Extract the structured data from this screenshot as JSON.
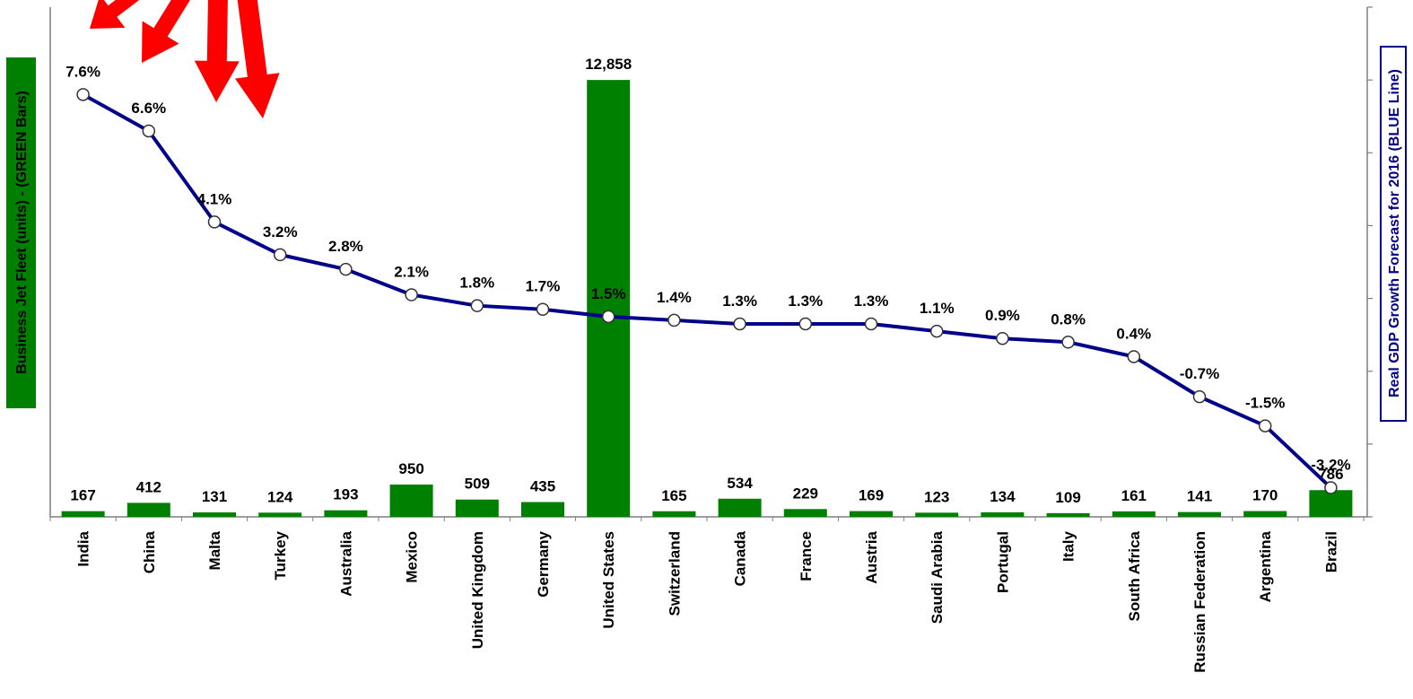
{
  "chart_data": {
    "type": "bar",
    "categories": [
      "India",
      "China",
      "Malta",
      "Turkey",
      "Australia",
      "Mexico",
      "United Kingdom",
      "Germany",
      "United States",
      "Switzerland",
      "Canada",
      "France",
      "Austria",
      "Saudi Arabia",
      "Portugal",
      "Italy",
      "South Africa",
      "Russian Federation",
      "Argentina",
      "Brazil"
    ],
    "series": [
      {
        "name": "Business Jet Fleet",
        "kind": "bar",
        "axis": "left",
        "color": "#008000",
        "values": [
          167,
          412,
          131,
          124,
          193,
          950,
          509,
          435,
          12858,
          165,
          534,
          229,
          169,
          123,
          134,
          109,
          161,
          141,
          170,
          786
        ],
        "labels": [
          "167",
          "412",
          "131",
          "124",
          "193",
          "950",
          "509",
          "435",
          "12,858",
          "165",
          "534",
          "229",
          "169",
          "123",
          "134",
          "109",
          "161",
          "141",
          "170",
          "786"
        ]
      },
      {
        "name": "Real GDP Growth Forecast for 2016",
        "kind": "line",
        "axis": "right",
        "color": "#00008B",
        "values": [
          7.6,
          6.6,
          4.1,
          3.2,
          2.8,
          2.1,
          1.8,
          1.7,
          1.5,
          1.4,
          1.3,
          1.3,
          1.3,
          1.1,
          0.9,
          0.8,
          0.4,
          -0.7,
          -1.5,
          -3.2
        ],
        "labels": [
          "7.6%",
          "6.6%",
          "4.1%",
          "3.2%",
          "2.8%",
          "2.1%",
          "1.8%",
          "1.7%",
          "1.5%",
          "1.4%",
          "1.3%",
          "1.3%",
          "1.3%",
          "1.1%",
          "0.9%",
          "0.8%",
          "0.4%",
          "-0.7%",
          "-1.5%",
          "-3.2%"
        ]
      }
    ],
    "ylabel": "Business Jet Fleet (units) - (GREEN Bars)",
    "y2label": "Real GDP Growth Forecast for 2016 (BLUE Line)",
    "ylim": [
      0,
      15000
    ],
    "y2lim": [
      -4,
      10
    ],
    "grid": false,
    "legend": "none"
  },
  "colors": {
    "bar": "#008000",
    "line": "#00008B",
    "arrow": "#FF0000",
    "ylabel_bg": "#008000",
    "ylabel_text": "#000000",
    "y2label_border": "#00008B",
    "y2label_text": "#00008B"
  }
}
